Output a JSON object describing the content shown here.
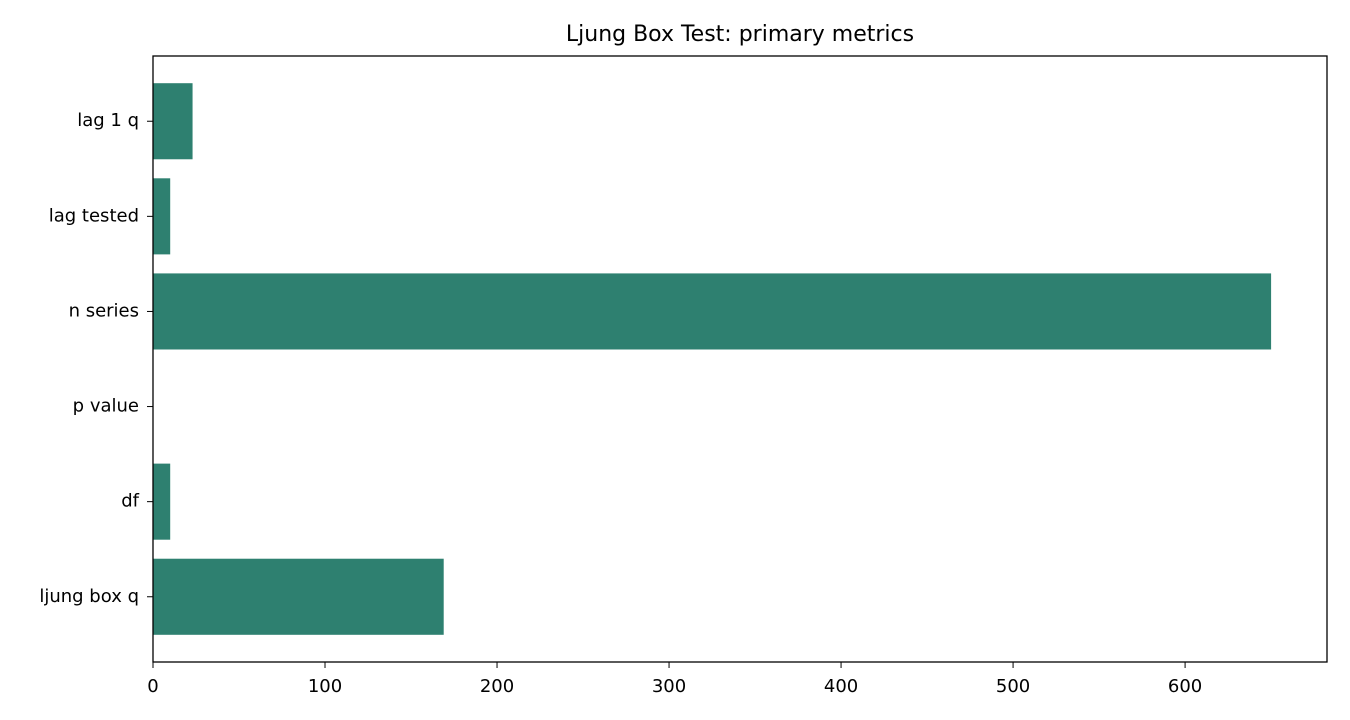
{
  "chart_data": {
    "type": "barh",
    "title": "Ljung Box Test: primary metrics",
    "categories": [
      "ljung box q",
      "df",
      "p value",
      "n series",
      "lag tested",
      "lag 1 q"
    ],
    "values": [
      169,
      10,
      0,
      650,
      10,
      23
    ],
    "color": "#2e8070",
    "xlim": [
      0,
      682.5
    ],
    "xticks": [
      0,
      100,
      200,
      300,
      400,
      500,
      600
    ]
  }
}
